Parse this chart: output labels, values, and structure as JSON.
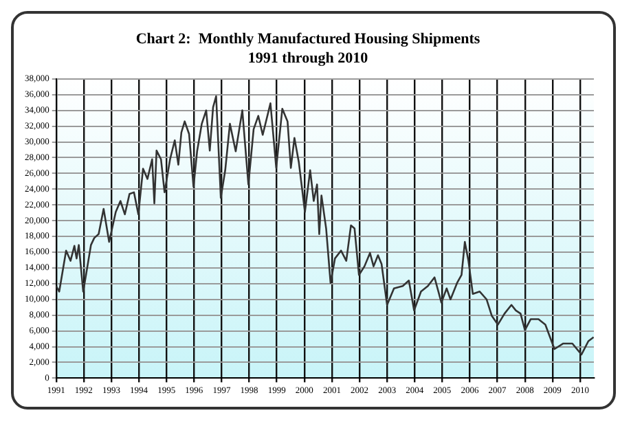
{
  "chart_data": {
    "type": "line",
    "title": "Chart 2:  Monthly Manufactured Housing Shipments",
    "subtitle": "1991 through 2010",
    "x": [
      1991.0,
      1991.11,
      1991.36,
      1991.52,
      1991.66,
      1991.74,
      1991.82,
      1991.98,
      1992.1,
      1992.26,
      1992.38,
      1992.54,
      1992.72,
      1992.92,
      1993.16,
      1993.33,
      1993.49,
      1993.66,
      1993.82,
      1993.98,
      1994.15,
      1994.31,
      1994.48,
      1994.56,
      1994.64,
      1994.8,
      1994.93,
      1995.13,
      1995.3,
      1995.43,
      1995.54,
      1995.66,
      1995.82,
      1995.98,
      1996.11,
      1996.28,
      1996.44,
      1996.57,
      1996.69,
      1996.8,
      1996.97,
      1997.13,
      1997.3,
      1997.51,
      1997.75,
      1997.97,
      1998.16,
      1998.33,
      1998.49,
      1998.77,
      1998.98,
      1999.2,
      1999.39,
      1999.51,
      1999.64,
      1999.8,
      2000.02,
      2000.21,
      2000.34,
      2000.46,
      2000.54,
      2000.62,
      2000.79,
      2000.95,
      2001.11,
      2001.33,
      2001.52,
      2001.69,
      2001.82,
      2001.98,
      2002.18,
      2002.38,
      2002.51,
      2002.67,
      2002.8,
      2003.0,
      2003.25,
      2003.57,
      2003.79,
      2003.98,
      2004.23,
      2004.48,
      2004.72,
      2004.97,
      2005.16,
      2005.3,
      2005.54,
      2005.7,
      2005.82,
      2005.95,
      2006.11,
      2006.36,
      2006.61,
      2006.8,
      2007.02,
      2007.26,
      2007.51,
      2007.67,
      2007.84,
      2008.0,
      2008.21,
      2008.49,
      2008.74,
      2009.07,
      2009.39,
      2009.72,
      2010.05,
      2010.3,
      2010.49
    ],
    "series": [
      {
        "color": "#333333",
        "values": [
          11700,
          11000,
          16200,
          14900,
          16800,
          15200,
          16900,
          11000,
          13500,
          16900,
          17800,
          18300,
          21500,
          17300,
          21100,
          22500,
          20800,
          23400,
          23600,
          20800,
          26600,
          25300,
          27800,
          22200,
          28900,
          27800,
          23600,
          27800,
          30200,
          27100,
          31200,
          32600,
          31000,
          24300,
          28800,
          32300,
          34000,
          28900,
          34400,
          35800,
          22900,
          26400,
          32300,
          28800,
          34000,
          24600,
          31600,
          33300,
          30900,
          34900,
          26700,
          34200,
          32600,
          26700,
          30500,
          27400,
          21100,
          26400,
          22500,
          24600,
          18300,
          23200,
          19000,
          12100,
          15200,
          16200,
          14900,
          19400,
          19000,
          13100,
          14200,
          15900,
          14200,
          15600,
          14500,
          9300,
          11400,
          11700,
          12400,
          8600,
          11000,
          11700,
          12800,
          9600,
          11400,
          10000,
          12100,
          13100,
          17300,
          14900,
          10700,
          11000,
          10000,
          7900,
          6800,
          8200,
          9300,
          8600,
          8200,
          6100,
          7500,
          7500,
          6800,
          3700,
          4400,
          4400,
          3000,
          4700,
          5200
        ]
      }
    ],
    "xlim": [
      1991,
      2010.5
    ],
    "xticks": [
      1991,
      1992,
      1993,
      1994,
      1995,
      1996,
      1997,
      1998,
      1999,
      2000,
      2001,
      2002,
      2003,
      2004,
      2005,
      2006,
      2007,
      2008,
      2009,
      2010
    ],
    "ylim": [
      0,
      38000
    ],
    "yticks": [
      0,
      {
        "value": 2000,
        "label": "2,000"
      },
      {
        "value": 4000,
        "label": "4,000"
      },
      {
        "value": 6000,
        "label": "6,000"
      },
      {
        "value": 8000,
        "label": "8,000"
      },
      {
        "value": 10000,
        "label": "10,000"
      },
      {
        "value": 12000,
        "label": "12,000"
      },
      {
        "value": 14000,
        "label": "14,000"
      },
      {
        "value": 16000,
        "label": "16,000"
      },
      {
        "value": 18000,
        "label": "18,000"
      },
      {
        "value": 20000,
        "label": "20,000"
      },
      {
        "value": 22000,
        "label": "22,000"
      },
      {
        "value": 24000,
        "label": "24,000"
      },
      {
        "value": 26000,
        "label": "26,000"
      },
      {
        "value": 28000,
        "label": "28,000"
      },
      {
        "value": 30000,
        "label": "30,000"
      },
      {
        "value": 32000,
        "label": "32,000"
      },
      {
        "value": 34000,
        "label": "34,000"
      },
      {
        "value": 36000,
        "label": "36,000"
      },
      {
        "value": 38000,
        "label": "38,000"
      }
    ],
    "grid": true,
    "legend": false,
    "marker": "none",
    "line_style": "solid"
  }
}
